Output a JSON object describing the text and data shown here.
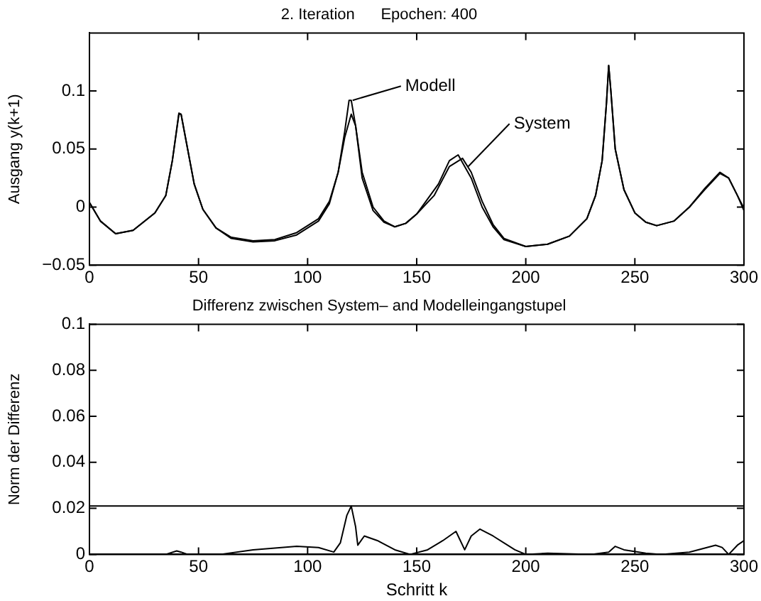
{
  "chart_data": [
    {
      "type": "line",
      "title": "2. Iteration      Epochen: 400",
      "ylabel": "Ausgang y(k+1)",
      "xlim": [
        0,
        300
      ],
      "xticks": [
        0,
        50,
        100,
        150,
        200,
        250,
        300
      ],
      "ylim": [
        -0.05,
        0.15
      ],
      "yticks": [
        -0.05,
        0,
        0.05,
        0.1
      ],
      "grid": false,
      "legend": false,
      "marker": "none",
      "line_style": "solid",
      "series": [
        {
          "color": "#000000",
          "x": [
            0,
            5,
            12,
            20,
            30,
            35,
            38,
            41,
            42,
            45,
            48,
            52,
            58,
            65,
            75,
            85,
            95,
            105,
            110,
            114,
            117,
            120,
            122,
            125,
            130,
            135,
            140,
            145,
            150,
            158,
            165,
            171,
            175,
            180,
            185,
            190,
            200,
            210,
            220,
            228,
            232,
            235,
            237,
            238,
            239,
            241,
            245,
            250,
            255,
            260,
            268,
            275,
            282,
            289,
            293,
            297,
            300
          ],
          "values": [
            0.004,
            -0.012,
            -0.023,
            -0.02,
            -0.005,
            0.01,
            0.04,
            0.08,
            0.08,
            0.05,
            0.02,
            -0.002,
            -0.018,
            -0.026,
            -0.029,
            -0.028,
            -0.022,
            -0.01,
            0.005,
            0.03,
            0.06,
            0.08,
            0.07,
            0.03,
            0.0,
            -0.012,
            -0.017,
            -0.014,
            -0.006,
            0.01,
            0.035,
            0.042,
            0.03,
            0.005,
            -0.015,
            -0.027,
            -0.034,
            -0.032,
            -0.025,
            -0.01,
            0.01,
            0.04,
            0.09,
            0.122,
            0.1,
            0.05,
            0.015,
            -0.005,
            -0.013,
            -0.016,
            -0.012,
            0.0,
            0.015,
            0.029,
            0.025,
            0.01,
            -0.003
          ]
        },
        {
          "color": "#000000",
          "x": [
            0,
            5,
            12,
            20,
            30,
            35,
            38,
            41,
            42,
            45,
            48,
            52,
            58,
            65,
            75,
            85,
            95,
            105,
            110,
            114,
            117,
            119,
            120,
            122,
            125,
            130,
            135,
            140,
            145,
            150,
            160,
            165,
            169,
            175,
            180,
            185,
            190,
            200,
            210,
            220,
            228,
            232,
            235,
            237,
            238,
            239,
            241,
            245,
            250,
            255,
            260,
            268,
            275,
            282,
            289,
            293,
            297,
            300
          ],
          "values": [
            0.004,
            -0.012,
            -0.023,
            -0.02,
            -0.005,
            0.01,
            0.04,
            0.081,
            0.08,
            0.05,
            0.02,
            -0.002,
            -0.018,
            -0.027,
            -0.03,
            -0.029,
            -0.024,
            -0.012,
            0.003,
            0.03,
            0.065,
            0.092,
            0.092,
            0.07,
            0.025,
            -0.003,
            -0.013,
            -0.017,
            -0.014,
            -0.006,
            0.02,
            0.04,
            0.045,
            0.025,
            0.0,
            -0.017,
            -0.028,
            -0.034,
            -0.032,
            -0.025,
            -0.01,
            0.01,
            0.04,
            0.09,
            0.122,
            0.1,
            0.05,
            0.015,
            -0.005,
            -0.013,
            -0.016,
            -0.012,
            0.0,
            0.016,
            0.03,
            0.025,
            0.01,
            -0.001
          ]
        }
      ],
      "annotations": [
        {
          "text": "Modell",
          "x": 120,
          "y": 0.092
        },
        {
          "text": "System",
          "x": 173,
          "y": 0.035
        }
      ]
    },
    {
      "type": "line",
      "title": "Differenz zwischen System– and Modelleingangstupel",
      "xlabel": "Schritt k",
      "ylabel": "Norm der Differenz",
      "xlim": [
        0,
        300
      ],
      "xticks": [
        0,
        50,
        100,
        150,
        200,
        250,
        300
      ],
      "ylim": [
        0,
        0.1
      ],
      "yticks": [
        0,
        0.02,
        0.04,
        0.06,
        0.08,
        0.1
      ],
      "grid": false,
      "legend": false,
      "marker": "none",
      "line_style": "solid",
      "ref_lines": [
        {
          "axis": "y",
          "value": 0.021,
          "color": "#000000"
        }
      ],
      "series": [
        {
          "color": "#000000",
          "x": [
            0,
            35,
            40,
            42,
            45,
            60,
            75,
            95,
            105,
            112,
            115,
            118,
            120,
            122,
            123,
            126,
            132,
            140,
            147,
            155,
            162,
            168,
            172,
            175,
            179,
            185,
            195,
            200,
            210,
            230,
            238,
            241,
            245,
            255,
            262,
            275,
            287,
            290,
            293,
            297,
            300
          ],
          "values": [
            0,
            0,
            0.0015,
            0.001,
            0,
            0,
            0.002,
            0.0035,
            0.003,
            0.001,
            0.005,
            0.017,
            0.021,
            0.012,
            0.004,
            0.008,
            0.006,
            0.002,
            0,
            0.002,
            0.006,
            0.01,
            0.002,
            0.008,
            0.011,
            0.008,
            0.002,
            0,
            0.0005,
            0,
            0.001,
            0.0035,
            0.002,
            0.0005,
            0,
            0.001,
            0.004,
            0.003,
            0,
            0.004,
            0.006
          ]
        }
      ]
    }
  ]
}
